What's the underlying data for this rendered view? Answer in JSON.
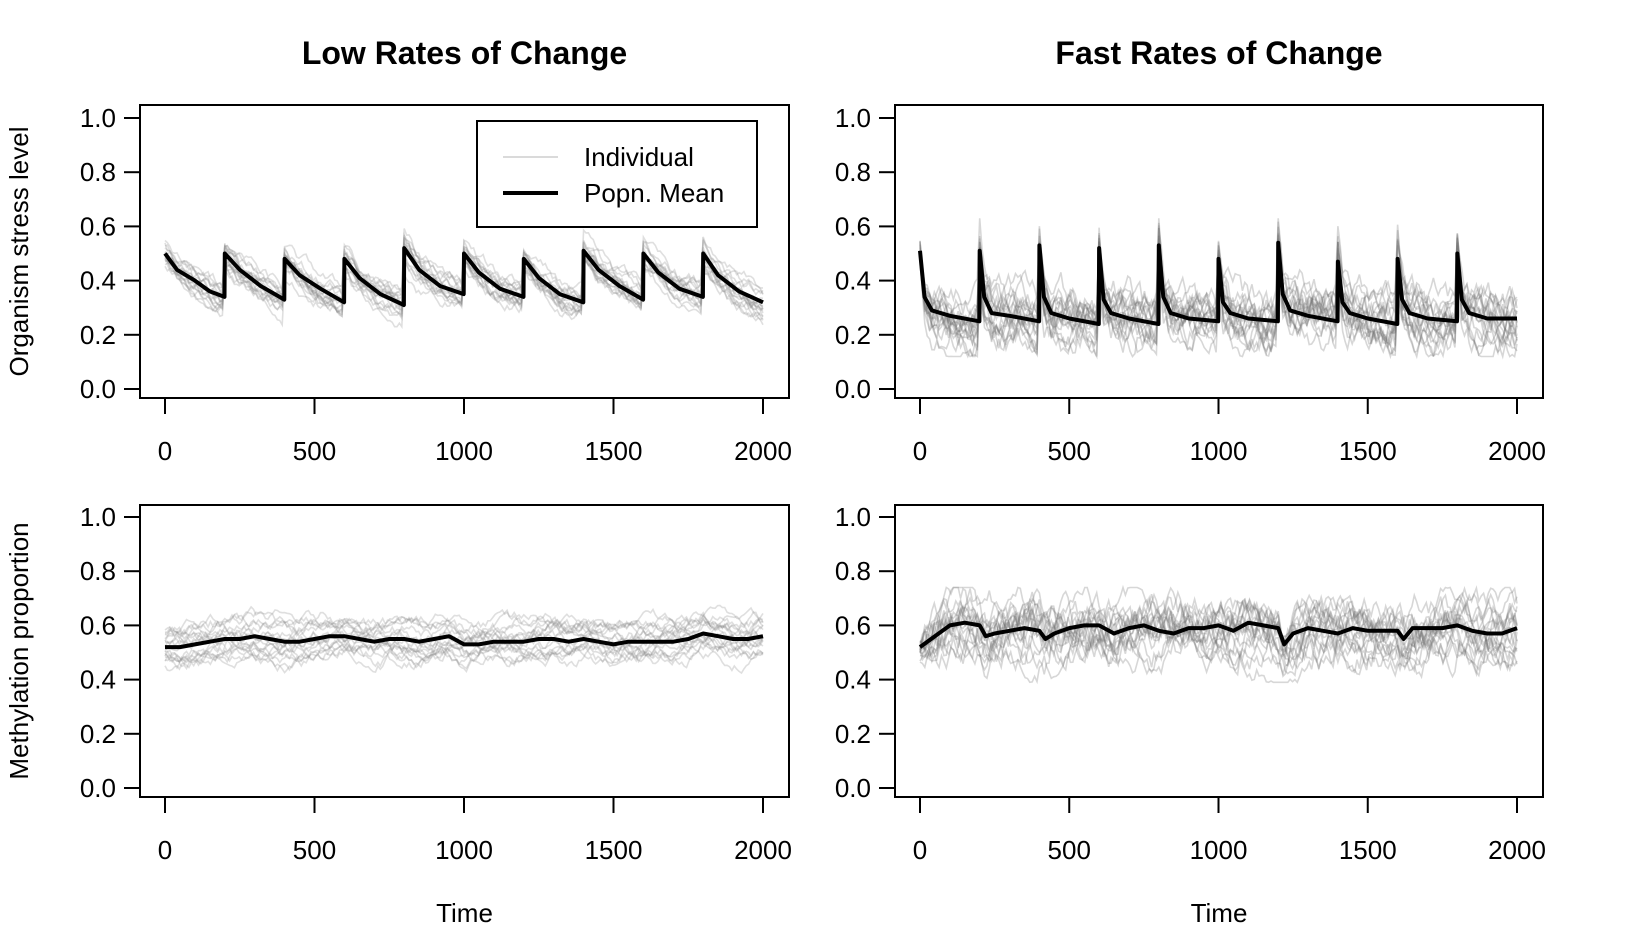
{
  "chart_data": [
    {
      "type": "line",
      "title": "Low Rates of Change",
      "ylabel": "Organism stress level",
      "xlabel": "",
      "xlim": [
        0,
        2000
      ],
      "ylim": [
        0,
        1
      ],
      "xticks": [
        "0",
        "500",
        "1000",
        "1500",
        "2000"
      ],
      "yticks": [
        "0.0",
        "0.2",
        "0.4",
        "0.6",
        "0.8",
        "1.0"
      ],
      "legend": {
        "placement": "top-right",
        "entries": [
          "Individual",
          "Popn. Mean"
        ]
      },
      "series": [
        {
          "name": "Popn. Mean",
          "x": [
            0,
            40,
            100,
            150,
            199,
            200,
            250,
            320,
            399,
            400,
            450,
            520,
            599,
            600,
            650,
            720,
            799,
            800,
            850,
            920,
            999,
            1000,
            1050,
            1120,
            1199,
            1200,
            1250,
            1320,
            1399,
            1400,
            1450,
            1520,
            1599,
            1600,
            1650,
            1720,
            1799,
            1800,
            1850,
            1920,
            2000
          ],
          "values": [
            0.5,
            0.44,
            0.4,
            0.36,
            0.34,
            0.5,
            0.44,
            0.38,
            0.33,
            0.48,
            0.42,
            0.37,
            0.32,
            0.48,
            0.41,
            0.35,
            0.31,
            0.52,
            0.44,
            0.38,
            0.35,
            0.5,
            0.43,
            0.37,
            0.34,
            0.48,
            0.41,
            0.35,
            0.32,
            0.51,
            0.44,
            0.38,
            0.33,
            0.5,
            0.43,
            0.37,
            0.34,
            0.5,
            0.42,
            0.36,
            0.32
          ]
        },
        {
          "name": "Individual",
          "band": [
            0.23,
            0.62
          ]
        }
      ]
    },
    {
      "type": "line",
      "title": "Fast Rates of Change",
      "ylabel": "",
      "xlabel": "",
      "xlim": [
        0,
        2000
      ],
      "ylim": [
        0,
        1
      ],
      "xticks": [
        "0",
        "500",
        "1000",
        "1500",
        "2000"
      ],
      "yticks": [
        "0.0",
        "0.2",
        "0.4",
        "0.6",
        "0.8",
        "1.0"
      ],
      "series": [
        {
          "name": "Popn. Mean",
          "x": [
            0,
            15,
            40,
            100,
            199,
            200,
            215,
            240,
            300,
            399,
            400,
            415,
            440,
            500,
            599,
            600,
            615,
            640,
            700,
            799,
            800,
            815,
            840,
            900,
            999,
            1000,
            1015,
            1040,
            1100,
            1199,
            1200,
            1215,
            1240,
            1300,
            1399,
            1400,
            1415,
            1440,
            1500,
            1599,
            1600,
            1615,
            1640,
            1700,
            1799,
            1800,
            1815,
            1840,
            1900,
            2000
          ],
          "values": [
            0.51,
            0.34,
            0.29,
            0.27,
            0.25,
            0.51,
            0.34,
            0.28,
            0.27,
            0.25,
            0.53,
            0.34,
            0.28,
            0.26,
            0.24,
            0.52,
            0.33,
            0.28,
            0.26,
            0.24,
            0.53,
            0.34,
            0.28,
            0.26,
            0.25,
            0.48,
            0.32,
            0.28,
            0.26,
            0.25,
            0.54,
            0.35,
            0.29,
            0.27,
            0.25,
            0.47,
            0.32,
            0.28,
            0.26,
            0.24,
            0.48,
            0.33,
            0.28,
            0.26,
            0.25,
            0.5,
            0.33,
            0.28,
            0.26,
            0.26
          ]
        },
        {
          "name": "Individual",
          "band": [
            0.12,
            0.63
          ]
        }
      ]
    },
    {
      "type": "line",
      "title": "",
      "ylabel": "Methylation proportion",
      "xlabel": "Time",
      "xlim": [
        0,
        2000
      ],
      "ylim": [
        0,
        1
      ],
      "xticks": [
        "0",
        "500",
        "1000",
        "1500",
        "2000"
      ],
      "yticks": [
        "0.0",
        "0.2",
        "0.4",
        "0.6",
        "0.8",
        "1.0"
      ],
      "series": [
        {
          "name": "Popn. Mean",
          "x": [
            0,
            50,
            100,
            150,
            200,
            250,
            300,
            350,
            400,
            450,
            500,
            550,
            600,
            650,
            700,
            750,
            800,
            850,
            900,
            950,
            1000,
            1050,
            1100,
            1150,
            1200,
            1250,
            1300,
            1350,
            1400,
            1450,
            1500,
            1550,
            1600,
            1650,
            1700,
            1750,
            1800,
            1850,
            1900,
            1950,
            2000
          ],
          "values": [
            0.52,
            0.52,
            0.53,
            0.54,
            0.55,
            0.55,
            0.56,
            0.55,
            0.54,
            0.54,
            0.55,
            0.56,
            0.56,
            0.55,
            0.54,
            0.55,
            0.55,
            0.54,
            0.55,
            0.56,
            0.53,
            0.53,
            0.54,
            0.54,
            0.54,
            0.55,
            0.55,
            0.54,
            0.55,
            0.54,
            0.53,
            0.54,
            0.54,
            0.54,
            0.54,
            0.55,
            0.57,
            0.56,
            0.55,
            0.55,
            0.56
          ]
        },
        {
          "name": "Individual",
          "band": [
            0.37,
            0.68
          ]
        }
      ]
    },
    {
      "type": "line",
      "title": "",
      "ylabel": "",
      "xlabel": "Time",
      "xlim": [
        0,
        2000
      ],
      "ylim": [
        0,
        1
      ],
      "xticks": [
        "0",
        "500",
        "1000",
        "1500",
        "2000"
      ],
      "yticks": [
        "0.0",
        "0.2",
        "0.4",
        "0.6",
        "0.8",
        "1.0"
      ],
      "series": [
        {
          "name": "Popn. Mean",
          "x": [
            0,
            50,
            100,
            150,
            200,
            220,
            250,
            300,
            350,
            400,
            420,
            450,
            500,
            550,
            600,
            650,
            700,
            750,
            800,
            850,
            900,
            950,
            1000,
            1050,
            1100,
            1150,
            1200,
            1220,
            1250,
            1300,
            1350,
            1400,
            1450,
            1500,
            1550,
            1600,
            1620,
            1650,
            1700,
            1750,
            1800,
            1850,
            1900,
            1950,
            2000
          ],
          "values": [
            0.52,
            0.56,
            0.6,
            0.61,
            0.6,
            0.56,
            0.57,
            0.58,
            0.59,
            0.58,
            0.55,
            0.57,
            0.59,
            0.6,
            0.6,
            0.57,
            0.59,
            0.6,
            0.58,
            0.57,
            0.59,
            0.59,
            0.6,
            0.58,
            0.61,
            0.6,
            0.59,
            0.53,
            0.57,
            0.59,
            0.58,
            0.57,
            0.59,
            0.58,
            0.58,
            0.58,
            0.55,
            0.59,
            0.59,
            0.59,
            0.6,
            0.58,
            0.57,
            0.57,
            0.59
          ]
        },
        {
          "name": "Individual",
          "band": [
            0.39,
            0.74
          ]
        }
      ]
    }
  ]
}
